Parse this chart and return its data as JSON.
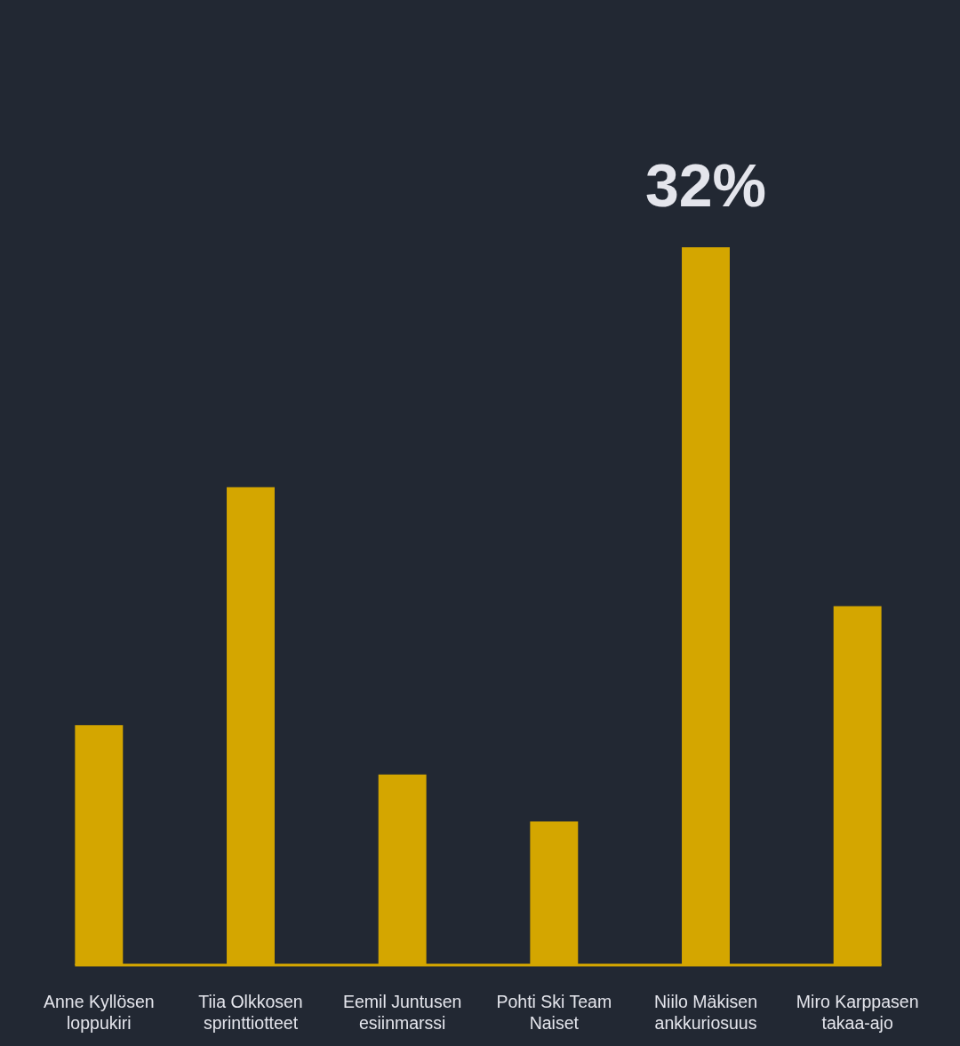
{
  "chart_data": {
    "type": "bar",
    "categories": [
      "Anne Kyllösen loppukiri",
      "Tiia Olkkosen sprinttiotteet",
      "Eemil Juntusen esiinmarssi",
      "Pohti Ski Team Naiset",
      "Niilo Mäkisen ankkuriosuus",
      "Miro Karppasen takaa-ajo"
    ],
    "values": [
      10.7,
      21.3,
      8.5,
      6.4,
      32,
      16.0
    ],
    "value_labels": [
      null,
      null,
      null,
      null,
      "32%",
      null
    ],
    "color": "#d4a600"
  }
}
